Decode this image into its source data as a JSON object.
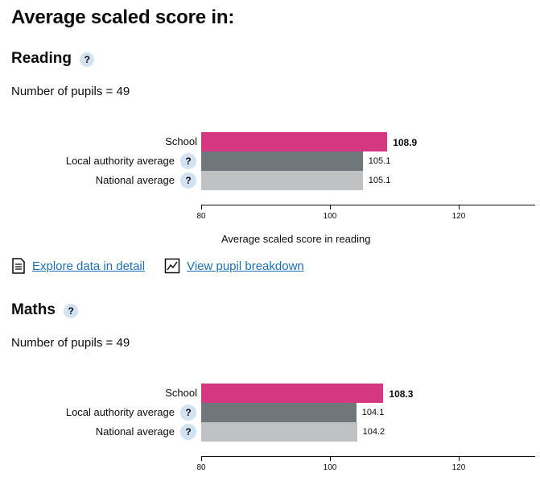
{
  "page": {
    "title": "Average scaled score in:"
  },
  "reading": {
    "title": "Reading",
    "help_glyph": "?",
    "pupils": "Number of pupils = 49",
    "xlabel": "Average scaled score in reading",
    "links": {
      "explore": "Explore data in detail",
      "breakdown": "View pupil breakdown"
    }
  },
  "maths": {
    "title": "Maths",
    "help_glyph": "?",
    "pupils": "Number of pupils = 49"
  },
  "colors": {
    "school": "#d53880",
    "local": "#6f777b",
    "national": "#bfc1c3"
  },
  "chart_data": [
    {
      "type": "bar",
      "orientation": "horizontal",
      "categories": [
        "School",
        "Local authority average",
        "National average"
      ],
      "values": [
        108.9,
        105.1,
        105.1
      ],
      "value_labels": [
        "108.9",
        "105.1",
        "105.1"
      ],
      "xlim": [
        80,
        132
      ],
      "ticks": [
        "80",
        "100",
        "120"
      ],
      "xlabel": "Average scaled score in reading",
      "help_glyph": "?"
    },
    {
      "type": "bar",
      "orientation": "horizontal",
      "categories": [
        "School",
        "Local authority average",
        "National average"
      ],
      "values": [
        108.3,
        104.1,
        104.2
      ],
      "value_labels": [
        "108.3",
        "104.1",
        "104.2"
      ],
      "xlim": [
        80,
        132
      ],
      "ticks": [
        "80",
        "100",
        "120"
      ],
      "xlabel": "",
      "help_glyph": "?"
    }
  ]
}
